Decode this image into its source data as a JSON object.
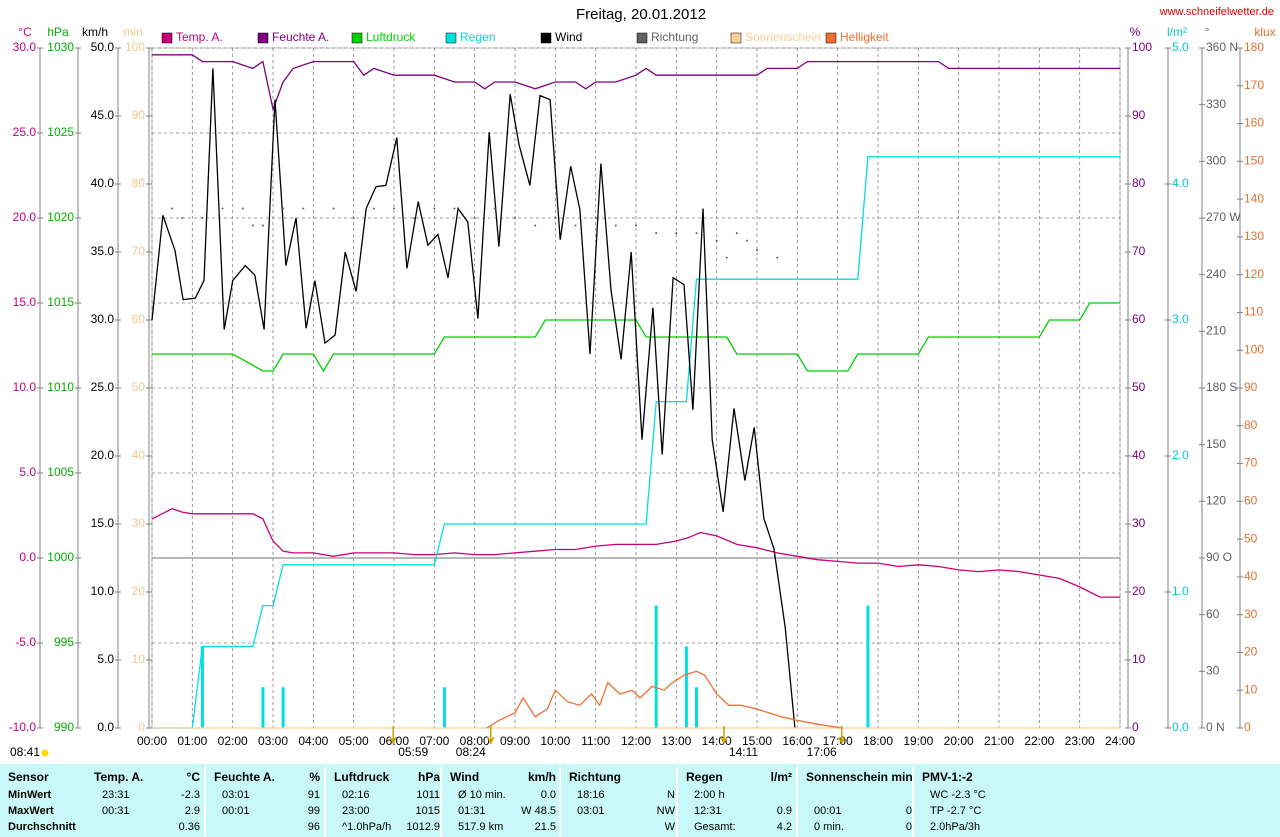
{
  "chart_data": {
    "type": "line",
    "title": "Freitag, 20.01.2012",
    "source": "www.schneifelwetter.de",
    "xlim": [
      0,
      24
    ],
    "xticks": [
      {
        "value": 0,
        "label": "00:00"
      },
      {
        "value": 1,
        "label": "01:00"
      },
      {
        "value": 2,
        "label": "02:00"
      },
      {
        "value": 3,
        "label": "03:00"
      },
      {
        "value": 4,
        "label": "04:00"
      },
      {
        "value": 5,
        "label": "05:00"
      },
      {
        "value": 6,
        "label": "06:00"
      },
      {
        "value": 7,
        "label": "07:00"
      },
      {
        "value": 8,
        "label": "08:00"
      },
      {
        "value": 9,
        "label": "09:00"
      },
      {
        "value": 10,
        "label": "10:00"
      },
      {
        "value": 11,
        "label": "11:00"
      },
      {
        "value": 12,
        "label": "12:00"
      },
      {
        "value": 13,
        "label": "13:00"
      },
      {
        "value": 14,
        "label": "14:00"
      },
      {
        "value": 15,
        "label": "15:00"
      },
      {
        "value": 16,
        "label": "16:00"
      },
      {
        "value": 17,
        "label": "17:00"
      },
      {
        "value": 18,
        "label": "18:00"
      },
      {
        "value": 19,
        "label": "19:00"
      },
      {
        "value": 20,
        "label": "20:00"
      },
      {
        "value": 21,
        "label": "21:00"
      },
      {
        "value": 22,
        "label": "22:00"
      },
      {
        "value": 23,
        "label": "23:00"
      },
      {
        "value": 24,
        "label": "24:00"
      }
    ],
    "grid": true,
    "grid_axis": "temp",
    "axes": [
      {
        "id": "temp",
        "unit": "°C",
        "side": "left",
        "color": "#c8007c",
        "lim": [
          -10,
          30
        ],
        "ticks": [
          {
            "value": 30,
            "label": "30.0"
          },
          {
            "value": 25,
            "label": "25.0"
          },
          {
            "value": 20,
            "label": "20.0"
          },
          {
            "value": 15,
            "label": "15.0"
          },
          {
            "value": 10,
            "label": "10.0"
          },
          {
            "value": 5,
            "label": "5.0"
          },
          {
            "value": 0,
            "label": "0.0"
          },
          {
            "value": -5,
            "label": "-5.0"
          },
          {
            "value": -10,
            "label": "-10.0"
          }
        ]
      },
      {
        "id": "pressure",
        "unit": "hPa",
        "side": "left",
        "color": "#00b000",
        "lim": [
          990,
          1030
        ],
        "ticks": [
          1030,
          1025,
          1020,
          1015,
          1010,
          1005,
          1000,
          995,
          990
        ]
      },
      {
        "id": "wind",
        "unit": "km/h",
        "side": "left",
        "color": "#000000",
        "lim": [
          0,
          50
        ],
        "ticks": [
          {
            "value": 50,
            "label": "50.0"
          },
          {
            "value": 45,
            "label": "45.0"
          },
          {
            "value": 40,
            "label": "40.0"
          },
          {
            "value": 35,
            "label": "35.0"
          },
          {
            "value": 30,
            "label": "30.0"
          },
          {
            "value": 25,
            "label": "25.0"
          },
          {
            "value": 20,
            "label": "20.0"
          },
          {
            "value": 15,
            "label": "15.0"
          },
          {
            "value": 10,
            "label": "10.0"
          },
          {
            "value": 5,
            "label": "5.0"
          },
          {
            "value": 0,
            "label": "0.0"
          }
        ]
      },
      {
        "id": "sun",
        "unit": "min",
        "side": "left",
        "color": "#f4c890",
        "lim": [
          0,
          100
        ],
        "ticks": [
          100,
          90,
          80,
          70,
          60,
          50,
          40,
          30,
          20,
          10,
          0
        ]
      },
      {
        "id": "hum",
        "unit": "%",
        "side": "right",
        "color": "#800080",
        "lim": [
          0,
          100
        ],
        "ticks": [
          100,
          90,
          80,
          70,
          60,
          50,
          40,
          30,
          20,
          10,
          0
        ]
      },
      {
        "id": "rain",
        "unit": "l/m²",
        "side": "right",
        "color": "#00c8c8",
        "lim": [
          0,
          5
        ],
        "ticks": [
          {
            "value": 5,
            "label": "5.0"
          },
          {
            "value": 4,
            "label": "4.0"
          },
          {
            "value": 3,
            "label": "3.0"
          },
          {
            "value": 2,
            "label": "2.0"
          },
          {
            "value": 1,
            "label": "1.0"
          },
          {
            "value": 0,
            "label": "0.0"
          }
        ]
      },
      {
        "id": "dir",
        "unit": "°",
        "side": "right",
        "color": "#606060",
        "lim": [
          0,
          360
        ],
        "ticks": [
          {
            "value": 360,
            "label": "360 N"
          },
          330,
          300,
          {
            "value": 270,
            "label": "270 W"
          },
          240,
          210,
          {
            "value": 180,
            "label": "180 S"
          },
          150,
          120,
          {
            "value": 90,
            "label": "90 O"
          },
          60,
          30,
          {
            "value": 0,
            "label": "0 N"
          }
        ]
      },
      {
        "id": "lux",
        "unit": "klux",
        "side": "right",
        "color": "#e87030",
        "lim": [
          0,
          180
        ],
        "ticks": [
          180,
          170,
          160,
          150,
          140,
          130,
          120,
          110,
          100,
          90,
          80,
          70,
          60,
          50,
          40,
          30,
          20,
          10,
          0
        ]
      }
    ],
    "series": [
      {
        "name": "Temp. A.",
        "color": "#c8007c",
        "axis": "temp",
        "style": "line",
        "x": [
          0,
          0.25,
          0.5,
          0.75,
          1,
          1.5,
          2,
          2.5,
          2.75,
          3,
          3.25,
          3.5,
          4,
          4.5,
          5,
          6,
          6.5,
          7,
          7.5,
          8,
          8.5,
          9,
          9.5,
          10,
          10.5,
          11,
          11.5,
          12,
          12.5,
          13,
          13.3,
          13.6,
          14,
          14.5,
          15,
          15.5,
          16,
          16.5,
          17,
          17.5,
          18,
          18.5,
          19,
          19.5,
          20,
          20.5,
          21,
          21.5,
          22,
          22.5,
          23,
          23.5,
          24
        ],
        "values": [
          2.3,
          2.6,
          2.9,
          2.7,
          2.6,
          2.6,
          2.6,
          2.6,
          2.3,
          1.0,
          0.4,
          0.3,
          0.3,
          0.1,
          0.3,
          0.3,
          0.2,
          0.2,
          0.3,
          0.2,
          0.2,
          0.3,
          0.4,
          0.5,
          0.5,
          0.7,
          0.8,
          0.8,
          0.8,
          1.0,
          1.2,
          1.5,
          1.3,
          0.8,
          0.6,
          0.3,
          0.1,
          -0.1,
          -0.2,
          -0.3,
          -0.3,
          -0.5,
          -0.4,
          -0.5,
          -0.7,
          -0.8,
          -0.7,
          -0.8,
          -1.0,
          -1.2,
          -1.7,
          -2.3,
          -2.3
        ]
      },
      {
        "name": "Feuchte A.",
        "color": "#800080",
        "axis": "hum",
        "style": "line",
        "x": [
          0,
          1,
          1.25,
          2,
          2.5,
          2.75,
          3,
          3.25,
          3.5,
          4,
          5,
          5.25,
          5.5,
          6,
          7,
          7.5,
          8,
          8.25,
          8.5,
          9,
          9.5,
          10,
          10.5,
          10.75,
          11,
          11.5,
          12,
          12.25,
          12.5,
          13,
          14,
          15,
          15.25,
          16,
          16.25,
          18,
          19.5,
          19.75,
          24
        ],
        "values": [
          99,
          99,
          98,
          98,
          97,
          98,
          91,
          95,
          97,
          98,
          98,
          96,
          97,
          96,
          96,
          95,
          95,
          94,
          95,
          95,
          94,
          95,
          95,
          94,
          95,
          95,
          96,
          97,
          96,
          96,
          96,
          96,
          97,
          97,
          98,
          98,
          98,
          97,
          97
        ]
      },
      {
        "name": "Luftdruck",
        "color": "#00d000",
        "axis": "pressure",
        "style": "line",
        "x": [
          0,
          2,
          2.75,
          3,
          3.25,
          4,
          4.25,
          4.5,
          7,
          7.25,
          9.5,
          9.75,
          12,
          12.25,
          14.25,
          14.5,
          16,
          16.25,
          17.25,
          17.5,
          19,
          19.25,
          22,
          22.25,
          23,
          23.25,
          24
        ],
        "values": [
          1012,
          1012,
          1011,
          1011,
          1012,
          1012,
          1011,
          1012,
          1012,
          1013,
          1013,
          1014,
          1014,
          1013,
          1013,
          1012,
          1012,
          1011,
          1011,
          1012,
          1012,
          1013,
          1013,
          1014,
          1014,
          1015,
          1015
        ]
      },
      {
        "name": "Regen",
        "color": "#00e0e0",
        "axis": "rain",
        "style": "line",
        "x": [
          0,
          1,
          1.25,
          2.5,
          2.75,
          3,
          3.25,
          7,
          7.25,
          12.25,
          12.5,
          13,
          13.25,
          13.5,
          17.5,
          17.75,
          24
        ],
        "values": [
          0,
          0,
          0.6,
          0.6,
          0.9,
          0.9,
          1.2,
          1.2,
          1.5,
          1.5,
          2.4,
          2.4,
          2.4,
          3.3,
          3.3,
          4.2,
          4.2
        ],
        "bar_x": [
          1.25,
          2.75,
          3.25,
          7.25,
          12.5,
          13.25,
          13.5,
          17.75
        ],
        "bar_values": [
          0.6,
          0.3,
          0.3,
          0.3,
          0.9,
          0.6,
          0.3,
          0.9
        ]
      },
      {
        "name": "Wind",
        "color": "#000000",
        "axis": "wind",
        "style": "line",
        "x": [
          0,
          0.27,
          0.57,
          0.77,
          1.07,
          1.29,
          1.51,
          1.79,
          2.0,
          2.31,
          2.55,
          2.78,
          3.05,
          3.32,
          3.57,
          3.82,
          4.04,
          4.29,
          4.54,
          4.79,
          5.06,
          5.31,
          5.55,
          5.8,
          6.07,
          6.32,
          6.6,
          6.84,
          7.09,
          7.34,
          7.59,
          7.83,
          8.08,
          8.36,
          8.6,
          8.88,
          9.1,
          9.37,
          9.62,
          9.87,
          10.12,
          10.38,
          10.61,
          10.86,
          11.13,
          11.38,
          11.63,
          11.88,
          12.15,
          12.42,
          12.65,
          12.92,
          13.19,
          13.41,
          13.66,
          13.89,
          14.16,
          14.43,
          14.7,
          14.93,
          15.17,
          15.42,
          15.7,
          15.94
        ],
        "values": [
          30.0,
          37.7,
          35.1,
          31.5,
          31.6,
          32.9,
          48.5,
          29.3,
          32.9,
          34.0,
          33.3,
          29.3,
          46.2,
          34.0,
          37.5,
          29.4,
          32.9,
          28.3,
          28.9,
          35.0,
          32.1,
          38.2,
          39.8,
          39.9,
          43.4,
          33.8,
          38.7,
          35.5,
          36.3,
          33.1,
          38.2,
          37.2,
          30.1,
          43.8,
          35.4,
          46.6,
          42.9,
          39.9,
          46.5,
          46.2,
          35.9,
          41.3,
          38.1,
          27.5,
          41.5,
          32.2,
          27.1,
          35.0,
          21.2,
          30.9,
          20.1,
          33.1,
          32.6,
          23.4,
          38.2,
          21.2,
          15.9,
          23.5,
          18.2,
          22.1,
          15.4,
          13.2,
          7.4,
          0.0
        ]
      },
      {
        "name": "Richtung",
        "color": "#606060",
        "axis": "dir",
        "style": "dots",
        "x": [
          0.5,
          0.75,
          1.25,
          1.75,
          2.25,
          2.5,
          2.75,
          3.25,
          3.75,
          4.5,
          5,
          5.5,
          6,
          6.5,
          7,
          7.5,
          8,
          8.5,
          9,
          9.5,
          10,
          10.5,
          11,
          11.5,
          12,
          12.5,
          13,
          13.5,
          14,
          14.25,
          14.5,
          14.75,
          15,
          15.5
        ],
        "values": [
          275,
          270,
          270,
          275,
          275,
          266,
          266,
          275,
          275,
          275,
          270,
          275,
          275,
          270,
          275,
          275,
          270,
          275,
          270,
          266,
          270,
          266,
          270,
          266,
          266,
          262,
          262,
          262,
          258,
          249,
          262,
          258,
          253,
          249
        ]
      },
      {
        "name": "Sonnenschein",
        "color": "#f8d098",
        "axis": "sun",
        "style": "line",
        "x": [
          0,
          24
        ],
        "values": [
          0,
          0
        ]
      },
      {
        "name": "Helligkeit",
        "color": "#f07030",
        "axis": "lux",
        "style": "line",
        "x": [
          8.3,
          8.6,
          9,
          9.2,
          9.5,
          9.8,
          10,
          10.3,
          10.6,
          10.9,
          11.1,
          11.3,
          11.6,
          11.9,
          12.1,
          12.4,
          12.7,
          12.9,
          13.2,
          13.5,
          13.7,
          14,
          14.3,
          14.6,
          15,
          15.3,
          15.6,
          16,
          16.5,
          17.1
        ],
        "values": [
          0,
          2,
          4,
          8,
          3,
          5,
          10,
          7,
          6,
          9,
          6,
          12,
          9,
          10,
          8,
          11,
          10,
          12,
          14,
          15,
          14,
          9,
          6,
          6,
          5,
          4,
          3,
          2,
          1,
          0
        ]
      }
    ],
    "annotations": [
      {
        "x": 5.98,
        "text": "05:59"
      },
      {
        "x": 8.4,
        "text": "08:24"
      },
      {
        "x": 14.18,
        "text": "14:11"
      },
      {
        "x": 17.1,
        "text": "17:06"
      }
    ],
    "left_note": "08:41",
    "stats": {
      "header": "Sensor",
      "row_labels": [
        "MinWert",
        "MaxWert",
        "Durchschnitt"
      ],
      "sections": [
        {
          "title": "Temp. A.",
          "unit": "°C",
          "rows": [
            [
              "23:31",
              "-2.3"
            ],
            [
              "00:31",
              "2.9"
            ],
            [
              null,
              "0.36"
            ]
          ]
        },
        {
          "title": "Feuchte A.",
          "unit": "%",
          "rows": [
            [
              "03:01",
              "91"
            ],
            [
              "00:01",
              "99"
            ],
            [
              null,
              "96"
            ]
          ]
        },
        {
          "title": "Luftdruck",
          "unit": "hPa",
          "rows": [
            [
              "02:16",
              "1011"
            ],
            [
              "23:00",
              "1015"
            ],
            [
              "^1.0hPa/h",
              "1012.9"
            ]
          ]
        },
        {
          "title": "Wind",
          "unit": "km/h",
          "rows": [
            [
              "Ø 10 min.",
              "0.0"
            ],
            [
              "01:31",
              "W 48.5"
            ],
            [
              "517.9 km",
              "21.5"
            ]
          ]
        },
        {
          "title": "Richtung",
          "unit": null,
          "rows": [
            [
              "18:16",
              "N"
            ],
            [
              "03:01",
              "NW"
            ],
            [
              null,
              "W"
            ]
          ]
        },
        {
          "title": "Regen",
          "unit": "l/m²",
          "rows": [
            [
              "2:00 h",
              null
            ],
            [
              "12:31",
              "0.9"
            ],
            [
              "Gesamt:",
              "4.2"
            ]
          ]
        },
        {
          "title": "Sonnenschein min",
          "unit": null,
          "rows": [
            [
              null,
              null
            ],
            [
              "00:01",
              "0"
            ],
            [
              "0 min.",
              "0"
            ]
          ]
        },
        {
          "title": "PMV-1:-2",
          "unit": null,
          "rows": [
            [
              "WC -2.3 °C",
              null
            ],
            [
              "TP -2.7 °C",
              null
            ],
            [
              "2.0hPa/3h",
              null
            ]
          ]
        }
      ]
    }
  }
}
